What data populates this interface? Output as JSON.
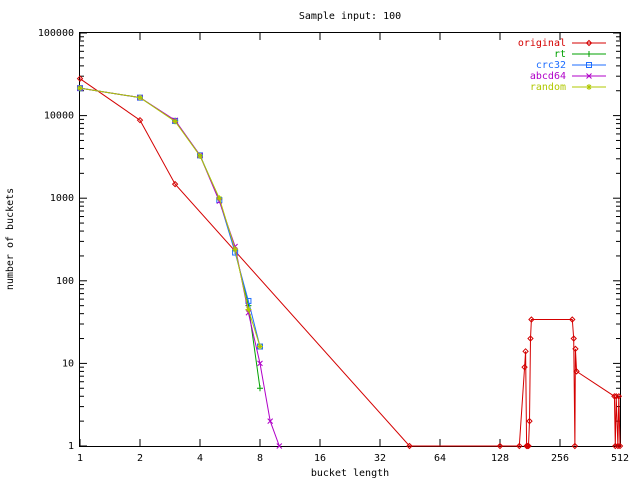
{
  "chart_data": {
    "type": "line",
    "title": "Sample input: 100",
    "xlabel": "bucket length",
    "ylabel": "number of buckets",
    "xscale": "log2",
    "yscale": "log10",
    "xlim": [
      1,
      512
    ],
    "ylim": [
      1,
      100000
    ],
    "x_ticks": [
      1,
      2,
      4,
      8,
      16,
      32,
      64,
      128,
      256,
      512
    ],
    "y_ticks": [
      1,
      10,
      100,
      1000,
      10000,
      100000
    ],
    "legend_position": "top-right",
    "grid": false,
    "series": [
      {
        "name": "original",
        "color": "#d40000",
        "marker": "diamond",
        "points": [
          [
            1,
            28000
          ],
          [
            2,
            8800
          ],
          [
            3,
            1480
          ],
          [
            45,
            1
          ],
          [
            128,
            1
          ],
          [
            160,
            1
          ],
          [
            170,
            9
          ],
          [
            172,
            14
          ],
          [
            174,
            1
          ],
          [
            176,
            1
          ],
          [
            178,
            1
          ],
          [
            180,
            2
          ],
          [
            182,
            20
          ],
          [
            184,
            34
          ],
          [
            295,
            34
          ],
          [
            300,
            20
          ],
          [
            304,
            1
          ],
          [
            306,
            15
          ],
          [
            310,
            8
          ],
          [
            480,
            4
          ],
          [
            485,
            1
          ],
          [
            490,
            4
          ],
          [
            500,
            1
          ],
          [
            505,
            4
          ],
          [
            512,
            1
          ]
        ]
      },
      {
        "name": "rt",
        "color": "#00a000",
        "marker": "plus",
        "points": [
          [
            1,
            21500
          ],
          [
            2,
            16500
          ],
          [
            3,
            8700
          ],
          [
            4,
            3300
          ],
          [
            5,
            980
          ],
          [
            6,
            230
          ],
          [
            7,
            50
          ],
          [
            8,
            5
          ]
        ]
      },
      {
        "name": "crc32",
        "color": "#1e6eff",
        "marker": "square",
        "points": [
          [
            1,
            21500
          ],
          [
            2,
            16500
          ],
          [
            3,
            8600
          ],
          [
            4,
            3300
          ],
          [
            5,
            950
          ],
          [
            6,
            220
          ],
          [
            7,
            57
          ],
          [
            8,
            16
          ]
        ]
      },
      {
        "name": "abcd64",
        "color": "#b000c8",
        "marker": "cross",
        "points": [
          [
            1,
            21500
          ],
          [
            2,
            16500
          ],
          [
            3,
            8800
          ],
          [
            4,
            3300
          ],
          [
            5,
            920
          ],
          [
            6,
            260
          ],
          [
            7,
            41
          ],
          [
            8,
            10
          ],
          [
            9,
            2
          ],
          [
            10,
            1
          ]
        ]
      },
      {
        "name": "random",
        "color": "#b0c800",
        "marker": "star",
        "points": [
          [
            1,
            21500
          ],
          [
            2,
            16500
          ],
          [
            3,
            8500
          ],
          [
            4,
            3250
          ],
          [
            5,
            1000
          ],
          [
            6,
            240
          ],
          [
            7,
            45
          ],
          [
            8,
            16
          ]
        ]
      }
    ]
  }
}
